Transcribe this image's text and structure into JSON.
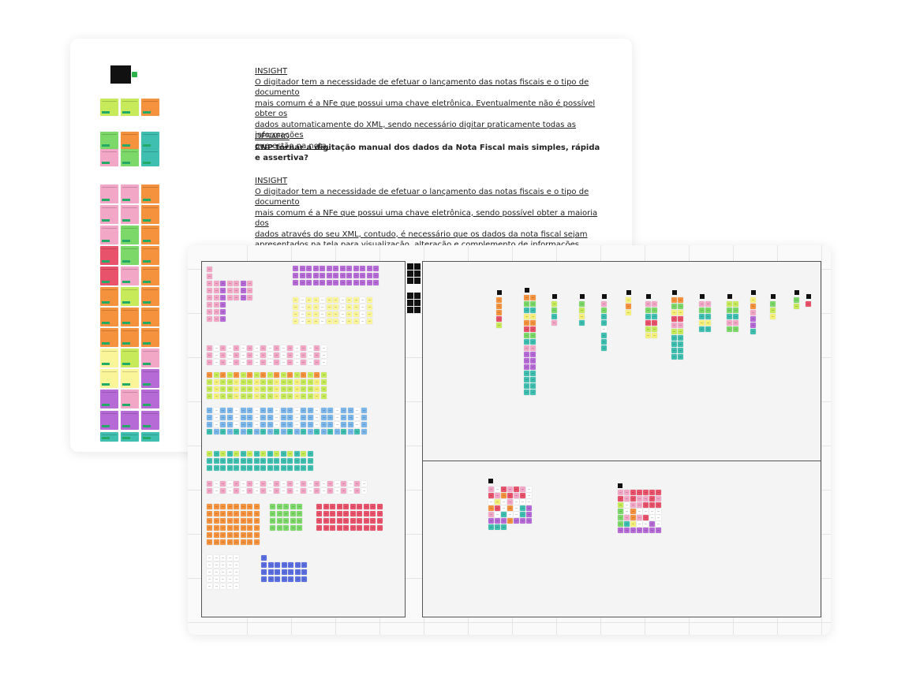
{
  "insight_1": {
    "heading": "INSIGHT",
    "lines": [
      "O digitador tem a necessidade de efetuar o lançamento das notas fiscais e o tipo de documento",
      "mais comum é a NFe que possui uma chave eletrônica. Eventualmente não é possível obter os",
      "dados automaticamente do XML, sendo necessário digitar praticamente todas as informações",
      "que estão na nota."
    ]
  },
  "desafio": {
    "heading": "DESAFIO",
    "text": "CNP tornar a digitação manual dos dados da Nota Fiscal mais simples, rápida e assertiva?"
  },
  "insight_2": {
    "heading": "INSIGHT",
    "lines": [
      "O digitador tem a necessidade de efetuar o lançamento das notas fiscais e o tipo de documento",
      "mais comum é a NFe que possui uma chave eletrônica, sendo possível obter a maioria dos",
      "dados através do seu XML, contudo,  é necessário que os dados da nota fiscal sejam",
      "apresentados na tela para visualização, alteração e complemento de informações."
    ]
  },
  "colors": {
    "yellow": "#f5f07a",
    "lime": "#c6ea5a",
    "green": "#7dd86a",
    "orange": "#f5923e",
    "teal": "#3fbfb0",
    "pink": "#f2a7c7",
    "red": "#e8536b",
    "purple": "#b56ad6",
    "violet": "#9c79e0",
    "blue": "#7ab6ea",
    "indigo": "#5a6ee0",
    "white": "#ffffff",
    "lightyellow": "#fbf59a",
    "check": "#2bb24c"
  },
  "icons": [
    "checkmark-icon",
    "board-thumbnail-icon"
  ]
}
